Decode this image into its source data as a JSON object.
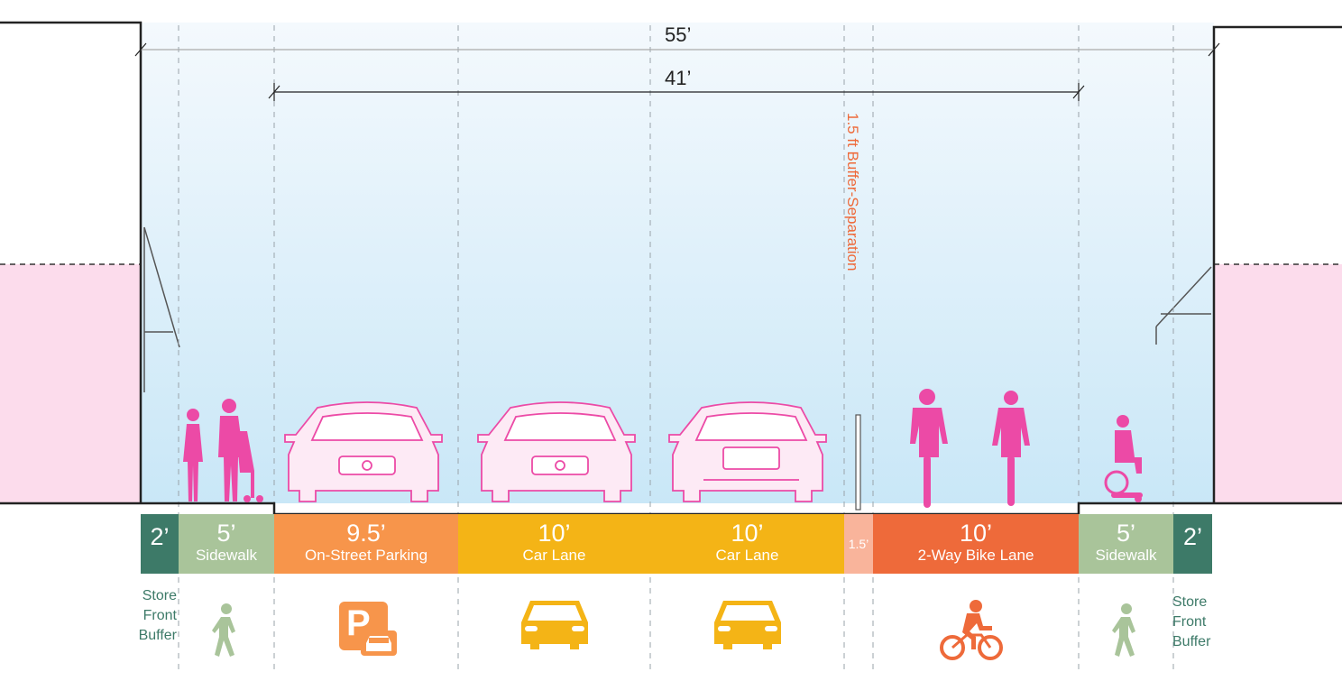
{
  "colors": {
    "buffer": "#3d7a68",
    "sidewalk": "#a9c49a",
    "parking": "#f7954b",
    "car_lane": "#f4b416",
    "buffer_sep": "#f9b49b",
    "bike": "#ee6a3a",
    "silhouette": "#ec4aa6",
    "building_pink": "#fcdcec",
    "sky_top": "#f4f9fd",
    "sky_bottom": "#c9e7f7"
  },
  "dimensions": {
    "total": "55’",
    "inner": "41’"
  },
  "buffer_separation_label": "1.5 ft Buffer-Separation",
  "segments": [
    {
      "width": "2’",
      "name": ""
    },
    {
      "width": "5’",
      "name": "Sidewalk"
    },
    {
      "width": "9.5’",
      "name": "On-Street Parking"
    },
    {
      "width": "10’",
      "name": "Car Lane"
    },
    {
      "width": "10’",
      "name": "Car Lane"
    },
    {
      "width": "1.5’",
      "name": ""
    },
    {
      "width": "10’",
      "name": "2-Way Bike Lane"
    },
    {
      "width": "5’",
      "name": "Sidewalk"
    },
    {
      "width": "2’",
      "name": ""
    }
  ],
  "store_front_buffer": {
    "left": [
      "Store",
      "Front",
      "Buffer"
    ],
    "right": [
      "Store",
      "Front",
      "Buffer"
    ]
  },
  "icons": {
    "pedestrian_left": "pedestrian-icon",
    "parking": "parking-icon",
    "car_1": "car-icon",
    "car_2": "car-icon",
    "bicycle": "bicycle-icon",
    "pedestrian_right": "pedestrian-icon"
  },
  "parking_sign_letter": "P"
}
